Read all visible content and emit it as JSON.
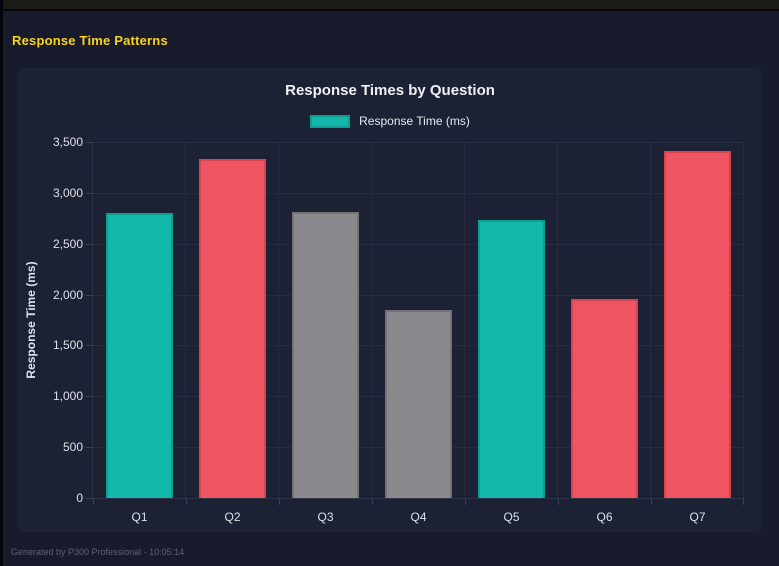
{
  "page": {
    "title": "Response Time Patterns",
    "title_color": "#f8d320",
    "footer": "Generated by P300 Professional - 10:05:14"
  },
  "chart_data": {
    "type": "bar",
    "title": "Response Times by Question",
    "legend": [
      {
        "label": "Response Time (ms)",
        "color": "#14b8aa",
        "border_color": "#0d9e92"
      }
    ],
    "legend_position": "top",
    "categories": [
      "Q1",
      "Q2",
      "Q3",
      "Q4",
      "Q5",
      "Q6",
      "Q7"
    ],
    "values": [
      2800,
      3330,
      2810,
      1850,
      2730,
      1960,
      3410
    ],
    "bar_colors": [
      "#14b8aa",
      "#ee5560",
      "#8a8a8e",
      "#8a8a8e",
      "#14b8aa",
      "#ee5560",
      "#ee5560"
    ],
    "bar_border_colors": [
      "#0d9e92",
      "#d7434f",
      "#737378",
      "#737378",
      "#0d9e92",
      "#d7434f",
      "#d7434f"
    ],
    "xlabel": "",
    "ylabel": "Response Time (ms)",
    "ylim": [
      0,
      3500
    ],
    "ytick_step": 500,
    "ytick_labels": [
      "0",
      "500",
      "1,000",
      "1,500",
      "2,000",
      "2,500",
      "3,000",
      "3,500"
    ],
    "grid": true
  }
}
